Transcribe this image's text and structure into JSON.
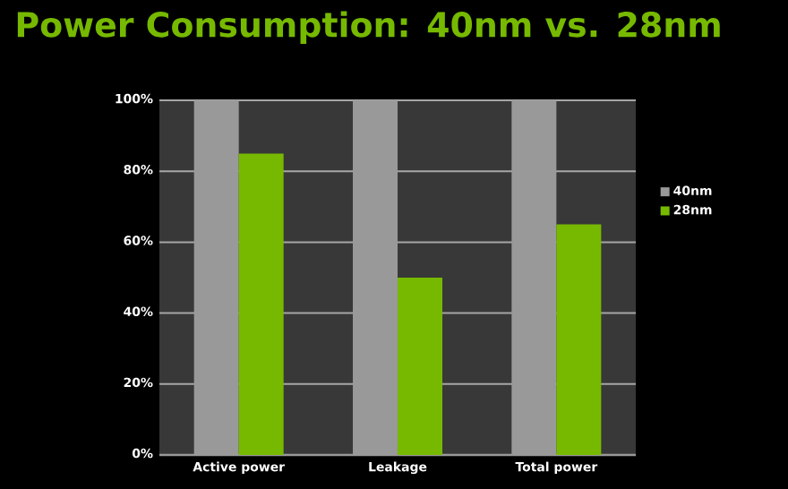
{
  "chart_data": {
    "type": "bar",
    "title": "Power Consumption: 40nm vs. 28nm",
    "categories": [
      "Active power",
      "Leakage",
      "Total power"
    ],
    "series": [
      {
        "name": "40nm",
        "color": "#999999",
        "values": [
          100,
          100,
          100
        ]
      },
      {
        "name": "28nm",
        "color": "#76b900",
        "values": [
          85,
          50,
          65
        ]
      }
    ],
    "ylim": [
      0,
      100
    ],
    "yticks": [
      {
        "value": 0,
        "label": "0%"
      },
      {
        "value": 20,
        "label": "20%"
      },
      {
        "value": 40,
        "label": "40%"
      },
      {
        "value": 60,
        "label": "60%"
      },
      {
        "value": 80,
        "label": "80%"
      },
      {
        "value": 100,
        "label": "100%"
      }
    ],
    "grid": "y",
    "legend": "right"
  }
}
